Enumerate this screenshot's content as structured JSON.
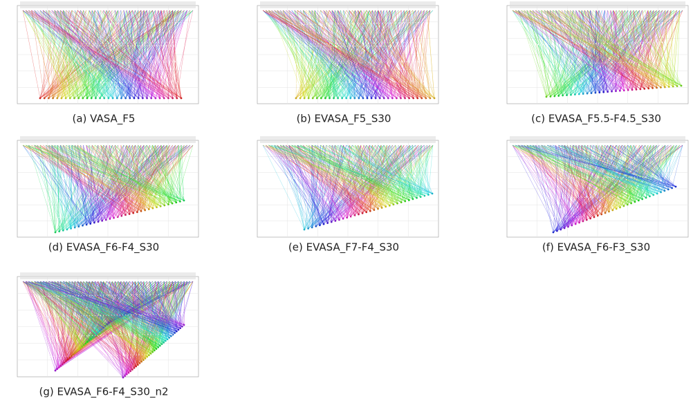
{
  "figure": {
    "panels": [
      {
        "caption": "(a) VASA_F5"
      },
      {
        "caption": "(b) EVASA_F5_S30"
      },
      {
        "caption": "(c) EVASA_F5.5-F4.5_S30"
      },
      {
        "caption": "(d) EVASA_F6-F4_S30"
      },
      {
        "caption": "(e) EVASA_F7-F4_S30"
      },
      {
        "caption": "(f) EVASA_F6-F3_S30"
      },
      {
        "caption": "(g) EVASA_F6-F4_S30_n2"
      }
    ]
  }
}
